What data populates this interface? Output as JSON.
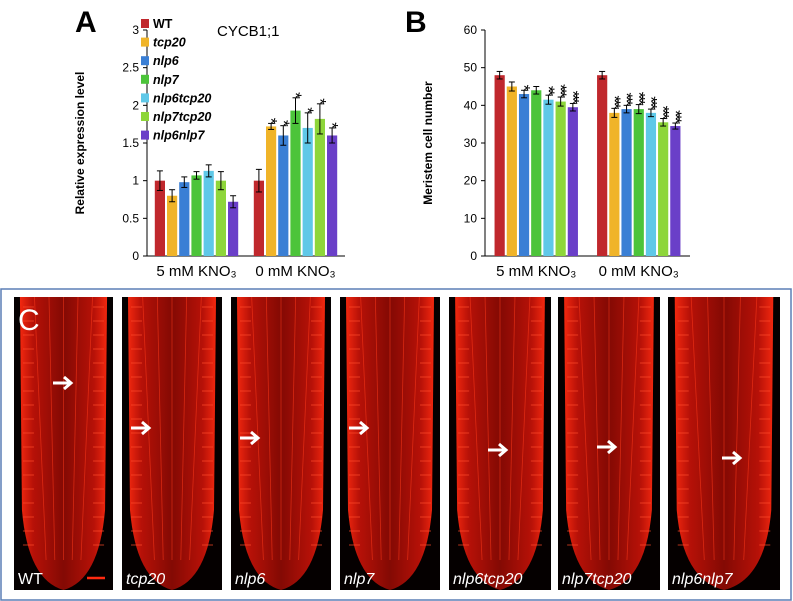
{
  "chart_data": [
    {
      "type": "bar",
      "panel": "A",
      "annotation": "CYCB1;1",
      "ylabel": "Relative expression level",
      "categories": [
        "5 mM KNO₃",
        "0 mM KNO₃"
      ],
      "ylim": [
        0,
        3
      ],
      "yticks": [
        0,
        0.5,
        1,
        1.5,
        2,
        2.5,
        3
      ],
      "legend": "upper left",
      "series": [
        {
          "name": "WT",
          "color": "#c0282d",
          "values": [
            1.0,
            1.0
          ],
          "errors": [
            0.13,
            0.15
          ],
          "significance": [
            null,
            null
          ]
        },
        {
          "name": "tcp20",
          "color": "#f0b429",
          "values": [
            0.8,
            1.72
          ],
          "errors": [
            0.08,
            0.04
          ],
          "significance": [
            null,
            "*"
          ]
        },
        {
          "name": "nlp6",
          "color": "#3a7fd5",
          "values": [
            0.98,
            1.6
          ],
          "errors": [
            0.07,
            0.13
          ],
          "significance": [
            null,
            "*"
          ]
        },
        {
          "name": "nlp7",
          "color": "#4cc43a",
          "values": [
            1.07,
            1.93
          ],
          "errors": [
            0.05,
            0.17
          ],
          "significance": [
            null,
            "*"
          ]
        },
        {
          "name": "nlp6tcp20",
          "color": "#5fc8e8",
          "values": [
            1.13,
            1.7
          ],
          "errors": [
            0.08,
            0.2
          ],
          "significance": [
            null,
            "*"
          ]
        },
        {
          "name": "nlp7tcp20",
          "color": "#8ed63a",
          "values": [
            1.0,
            1.82
          ],
          "errors": [
            0.12,
            0.2
          ],
          "significance": [
            null,
            "*"
          ]
        },
        {
          "name": "nlp6nlp7",
          "color": "#6a3fc8",
          "values": [
            0.72,
            1.6
          ],
          "errors": [
            0.08,
            0.1
          ],
          "significance": [
            null,
            "*"
          ]
        }
      ]
    },
    {
      "type": "bar",
      "panel": "B",
      "ylabel": "Meristem cell number",
      "categories": [
        "5 mM KNO₃",
        "0 mM KNO₃"
      ],
      "ylim": [
        0,
        60
      ],
      "yticks": [
        0,
        10,
        20,
        30,
        40,
        50,
        60
      ],
      "legend": false,
      "series": [
        {
          "name": "WT",
          "color": "#c0282d",
          "values": [
            48,
            48
          ],
          "errors": [
            1,
            1
          ],
          "significance": [
            null,
            null
          ]
        },
        {
          "name": "tcp20",
          "color": "#f0b429",
          "values": [
            45,
            38
          ],
          "errors": [
            1.2,
            1.2
          ],
          "significance": [
            null,
            "***"
          ]
        },
        {
          "name": "nlp6",
          "color": "#3a7fd5",
          "values": [
            43,
            39
          ],
          "errors": [
            1,
            1
          ],
          "significance": [
            "*",
            "***"
          ]
        },
        {
          "name": "nlp7",
          "color": "#4cc43a",
          "values": [
            44,
            39
          ],
          "errors": [
            1,
            1.2
          ],
          "significance": [
            null,
            "***"
          ]
        },
        {
          "name": "nlp6tcp20",
          "color": "#5fc8e8",
          "values": [
            41.5,
            38
          ],
          "errors": [
            1.2,
            1
          ],
          "significance": [
            "**",
            "***"
          ]
        },
        {
          "name": "nlp7tcp20",
          "color": "#8ed63a",
          "values": [
            41,
            35.5
          ],
          "errors": [
            1.2,
            1
          ],
          "significance": [
            "***",
            "***"
          ]
        },
        {
          "name": "nlp6nlp7",
          "color": "#6a3fc8",
          "values": [
            39.5,
            34.5
          ],
          "errors": [
            1,
            0.8
          ],
          "significance": [
            "***",
            "***"
          ]
        }
      ]
    }
  ],
  "images": {
    "panel": "C",
    "labels": [
      "WT",
      "tcp20",
      "nlp6",
      "nlp7",
      "nlp6tcp20",
      "nlp7tcp20",
      "nlp6nlp7"
    ]
  }
}
